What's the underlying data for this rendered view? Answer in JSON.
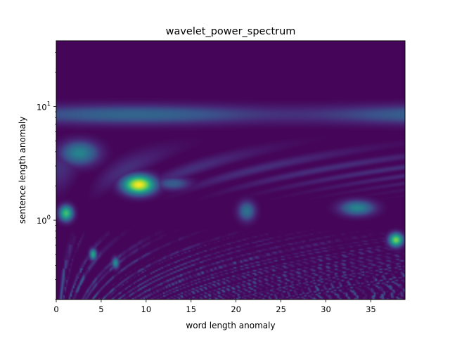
{
  "chart_data": {
    "type": "heatmap",
    "title": "wavelet_power_spectrum",
    "xlabel": "word length anomaly",
    "ylabel": "sentence length anomaly",
    "xlim": [
      0,
      38.8
    ],
    "ylim": [
      0.2,
      38
    ],
    "yscale": "log",
    "grid": false,
    "colormap": "viridis",
    "x_ticks": [
      {
        "value": 0,
        "label": "0"
      },
      {
        "value": 5,
        "label": "5"
      },
      {
        "value": 10,
        "label": "10"
      },
      {
        "value": 15,
        "label": "15"
      },
      {
        "value": 20,
        "label": "20"
      },
      {
        "value": 25,
        "label": "25"
      },
      {
        "value": 30,
        "label": "30"
      },
      {
        "value": 35,
        "label": "35"
      }
    ],
    "y_ticks": [
      {
        "value": 1,
        "base": "10",
        "exp": "0"
      },
      {
        "value": 10,
        "base": "10",
        "exp": "1"
      }
    ],
    "features": [
      {
        "x": 9.2,
        "y": 2.05,
        "sx": 1.8,
        "sy": 0.085,
        "power": 1.0
      },
      {
        "x": 2.6,
        "y": 3.9,
        "sx": 2.2,
        "sy": 0.11,
        "power": 0.45
      },
      {
        "x": 1.1,
        "y": 1.15,
        "sx": 0.8,
        "sy": 0.07,
        "power": 0.7
      },
      {
        "x": 37.8,
        "y": 0.67,
        "sx": 0.8,
        "sy": 0.06,
        "power": 0.8
      },
      {
        "x": 33.5,
        "y": 1.28,
        "sx": 2.0,
        "sy": 0.07,
        "power": 0.45
      },
      {
        "x": 21.2,
        "y": 1.2,
        "sx": 1.0,
        "sy": 0.09,
        "power": 0.38
      },
      {
        "x": 4.1,
        "y": 0.5,
        "sx": 0.4,
        "sy": 0.05,
        "power": 0.6
      },
      {
        "x": 6.6,
        "y": 0.42,
        "sx": 0.4,
        "sy": 0.05,
        "power": 0.5
      },
      {
        "x": 13.0,
        "y": 2.1,
        "sx": 2.0,
        "sy": 0.06,
        "power": 0.3
      }
    ],
    "band_period": 8.5,
    "band_power": 0.33
  }
}
